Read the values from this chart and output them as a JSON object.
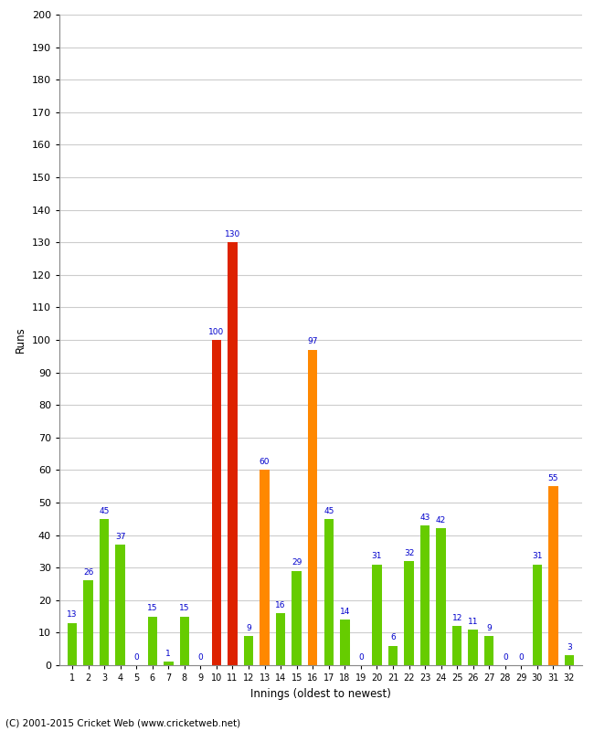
{
  "innings": [
    1,
    2,
    3,
    4,
    5,
    6,
    7,
    8,
    9,
    10,
    11,
    12,
    13,
    14,
    15,
    16,
    17,
    18,
    19,
    20,
    21,
    22,
    23,
    24,
    25,
    26,
    27,
    28,
    29,
    30,
    31,
    32
  ],
  "values": [
    13,
    26,
    45,
    37,
    0,
    15,
    1,
    15,
    0,
    100,
    130,
    9,
    60,
    16,
    29,
    97,
    45,
    14,
    0,
    31,
    6,
    32,
    43,
    42,
    12,
    11,
    9,
    0,
    0,
    31,
    55,
    3
  ],
  "colors": [
    "#66cc00",
    "#66cc00",
    "#66cc00",
    "#66cc00",
    "#66cc00",
    "#66cc00",
    "#66cc00",
    "#66cc00",
    "#66cc00",
    "#dd2200",
    "#dd2200",
    "#66cc00",
    "#ff8800",
    "#66cc00",
    "#66cc00",
    "#ff8800",
    "#66cc00",
    "#66cc00",
    "#66cc00",
    "#66cc00",
    "#66cc00",
    "#66cc00",
    "#66cc00",
    "#66cc00",
    "#66cc00",
    "#66cc00",
    "#66cc00",
    "#66cc00",
    "#66cc00",
    "#66cc00",
    "#ff8800",
    "#66cc00"
  ],
  "xlabel": "Innings (oldest to newest)",
  "ylabel": "Runs",
  "ylim": [
    0,
    200
  ],
  "yticks": [
    0,
    10,
    20,
    30,
    40,
    50,
    60,
    70,
    80,
    90,
    100,
    110,
    120,
    130,
    140,
    150,
    160,
    170,
    180,
    190,
    200
  ],
  "label_color": "#0000cc",
  "bg_color": "#ffffff",
  "grid_color": "#cccccc",
  "footer": "(C) 2001-2015 Cricket Web (www.cricketweb.net)"
}
